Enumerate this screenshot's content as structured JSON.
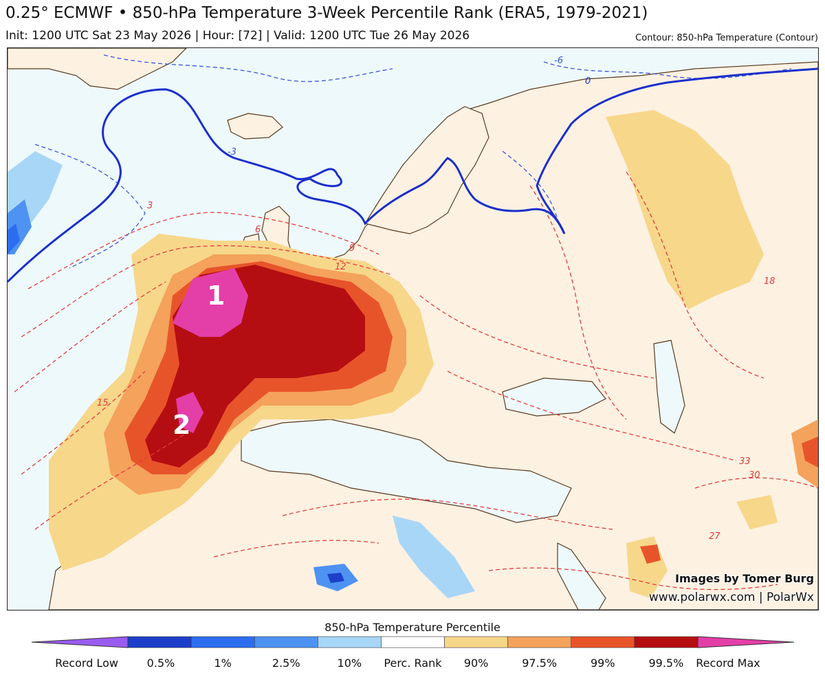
{
  "header": {
    "title": "0.25° ECMWF • 850-hPa Temperature 3-Week Percentile Rank (ERA5, 1979-2021)",
    "subtitle": "Init: 1200 UTC Sat 23 May 2026 | Hour: [72] | Valid: 1200 UTC Tue 26 May 2026",
    "contour_note": "Contour: 850-hPa Temperature (Contour)"
  },
  "map": {
    "region_markers": [
      "1",
      "2"
    ],
    "contour_labels": [
      "-6",
      "-3",
      "0",
      "3",
      "6",
      "9",
      "12",
      "15",
      "18",
      "27",
      "30",
      "33"
    ],
    "credit_line1": "Images by Tomer Burg",
    "credit_line2": "www.polarwx.com | PolarWx"
  },
  "legend": {
    "title": "850-hPa Temperature Percentile",
    "labels": [
      "Record Low",
      "0.5%",
      "1%",
      "2.5%",
      "10%",
      "Perc. Rank",
      "90%",
      "97.5%",
      "99%",
      "99.5%",
      "Record Max"
    ],
    "colors": [
      "#9a5cf0",
      "#1d3fc9",
      "#2d6ef0",
      "#4e92f2",
      "#a8d6f7",
      "#ffffff",
      "#f7d78a",
      "#f4a25c",
      "#e8542a",
      "#b50e12",
      "#e43ea8"
    ]
  },
  "colors": {
    "land": "#fdf1e2",
    "sea": "#eef9fc",
    "contour_warm": "#e03c3c",
    "contour_cold": "#3b55d8",
    "zero_line": "#1a2fcc",
    "coastline": "#5a3a1e"
  }
}
